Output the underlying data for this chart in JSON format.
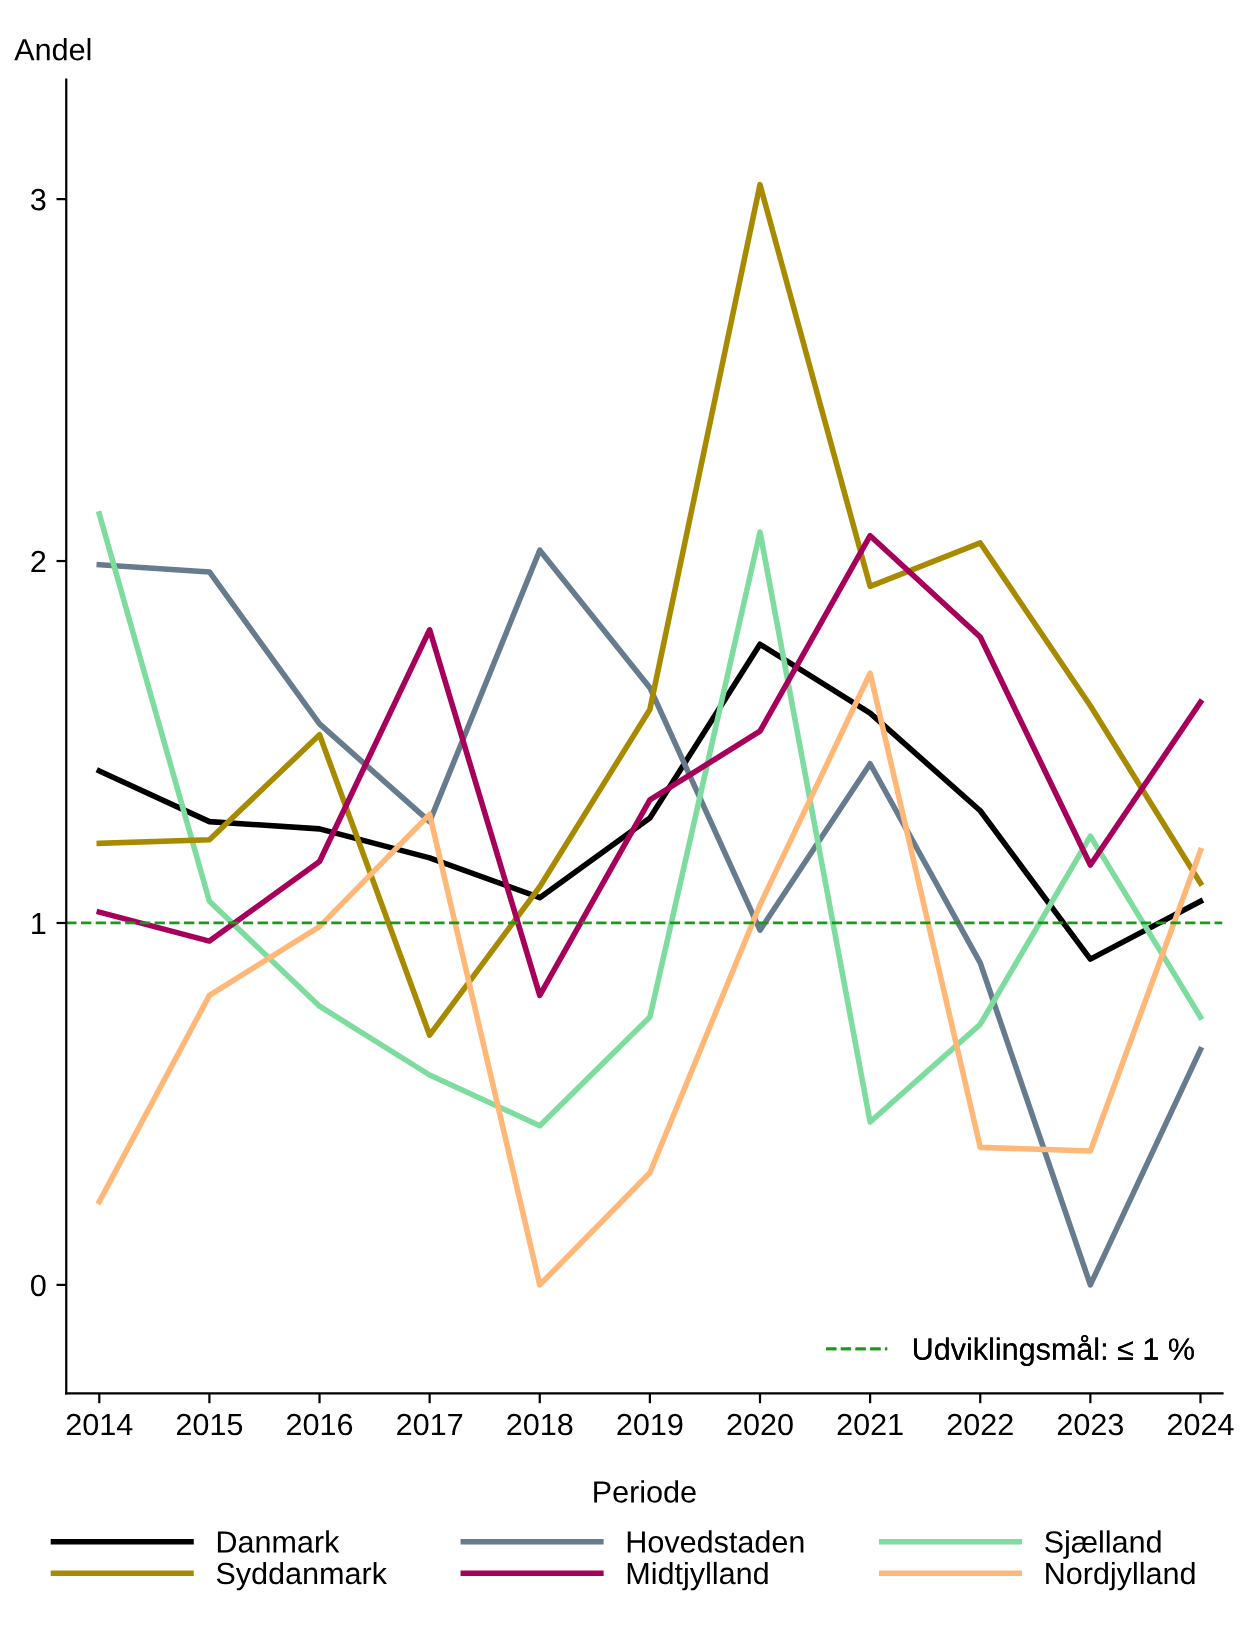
{
  "chart_data": {
    "type": "line",
    "xlabel": "Periode",
    "ylabel": "Andel",
    "x": [
      2014,
      2015,
      2016,
      2017,
      2018,
      2019,
      2020,
      2021,
      2022,
      2023,
      2024
    ],
    "xlim": [
      2013.7,
      2024.2
    ],
    "xticks": [
      2014,
      2015,
      2016,
      2017,
      2018,
      2019,
      2020,
      2021,
      2022,
      2023,
      2024
    ],
    "ylim": [
      -0.3,
      3.33
    ],
    "yticks": [
      0,
      1,
      2,
      3
    ],
    "grid": false,
    "legend": "bottom",
    "marker": "none",
    "line_style": "solid",
    "series": [
      {
        "name": "Danmark",
        "color": "#000000",
        "values": [
          1.42,
          1.28,
          1.26,
          1.18,
          1.07,
          1.29,
          1.77,
          1.58,
          1.31,
          0.9,
          1.06
        ]
      },
      {
        "name": "Hovedstaden",
        "color": "#667b8d",
        "values": [
          1.99,
          1.97,
          1.55,
          1.28,
          2.03,
          1.65,
          0.98,
          1.44,
          0.89,
          0.0,
          0.65
        ]
      },
      {
        "name": "Sjælland",
        "color": "#7ddc9e",
        "values": [
          2.13,
          1.06,
          0.77,
          0.58,
          0.44,
          0.74,
          2.08,
          0.45,
          0.72,
          1.24,
          0.74
        ]
      },
      {
        "name": "Syddanmark",
        "color": "#a88a00",
        "values": [
          1.22,
          1.23,
          1.52,
          0.69,
          1.1,
          1.59,
          3.04,
          1.93,
          2.05,
          1.6,
          1.11
        ]
      },
      {
        "name": "Midtjylland",
        "color": "#a6005a",
        "values": [
          1.03,
          0.95,
          1.17,
          1.81,
          0.8,
          1.34,
          1.53,
          2.07,
          1.79,
          1.16,
          1.61
        ]
      },
      {
        "name": "Nordjylland",
        "color": "#ffb878",
        "values": [
          0.23,
          0.8,
          0.99,
          1.3,
          0.0,
          0.31,
          1.05,
          1.69,
          0.38,
          0.37,
          1.2
        ]
      }
    ],
    "ref_lines": [
      {
        "axis": "y",
        "value": 1,
        "label": "Udviklingsmål: ≤ 1 %",
        "color": "#1a9a1a",
        "line_style": "dashed"
      }
    ]
  }
}
